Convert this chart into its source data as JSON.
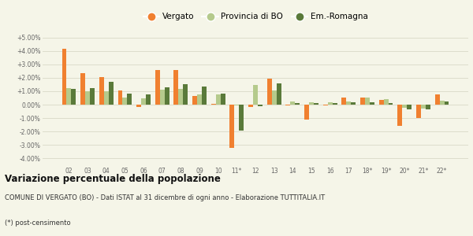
{
  "categories": [
    "02",
    "03",
    "04",
    "05",
    "06",
    "07",
    "08",
    "09",
    "10",
    "11*",
    "12",
    "13",
    "14",
    "15",
    "16",
    "17",
    "18*",
    "19*",
    "20*",
    "21*",
    "22*"
  ],
  "vergato": [
    4.15,
    2.35,
    2.05,
    1.05,
    -0.15,
    2.6,
    2.6,
    0.65,
    0.05,
    -3.2,
    -0.2,
    1.95,
    -0.05,
    -1.1,
    -0.05,
    0.55,
    0.55,
    0.35,
    -1.55,
    -1.0,
    0.75
  ],
  "provincia": [
    1.25,
    1.0,
    1.0,
    0.55,
    0.5,
    1.1,
    1.15,
    0.75,
    0.75,
    -0.05,
    1.45,
    1.05,
    0.25,
    0.15,
    0.2,
    0.25,
    0.55,
    0.4,
    -0.25,
    -0.3,
    0.3
  ],
  "emromagna": [
    1.15,
    1.25,
    1.7,
    0.85,
    0.75,
    1.3,
    1.5,
    1.35,
    0.8,
    -1.95,
    -0.1,
    1.6,
    0.1,
    0.1,
    0.1,
    0.2,
    0.2,
    0.1,
    -0.35,
    -0.35,
    0.25
  ],
  "vergato_color": "#f08030",
  "provincia_color": "#b5ca8c",
  "emromagna_color": "#5a7a3a",
  "bg_color": "#f5f5e8",
  "grid_color": "#ddddcc",
  "title": "Variazione percentuale della popolazione",
  "subtitle": "COMUNE DI VERGATO (BO) - Dati ISTAT al 31 dicembre di ogni anno - Elaborazione TUTTITALIA.IT",
  "footnote": "(*) post-censimento",
  "ylim": [
    -4.5,
    5.5
  ],
  "yticks": [
    -4.0,
    -3.0,
    -2.0,
    -1.0,
    0.0,
    1.0,
    2.0,
    3.0,
    4.0,
    5.0
  ],
  "ytick_labels": [
    "-4.00%",
    "-3.00%",
    "-2.00%",
    "-1.00%",
    "0.00%",
    "+1.00%",
    "+2.00%",
    "+3.00%",
    "+4.00%",
    "+5.00%"
  ],
  "legend_labels": [
    "Vergato",
    "Provincia di BO",
    "Em.-Romagna"
  ]
}
